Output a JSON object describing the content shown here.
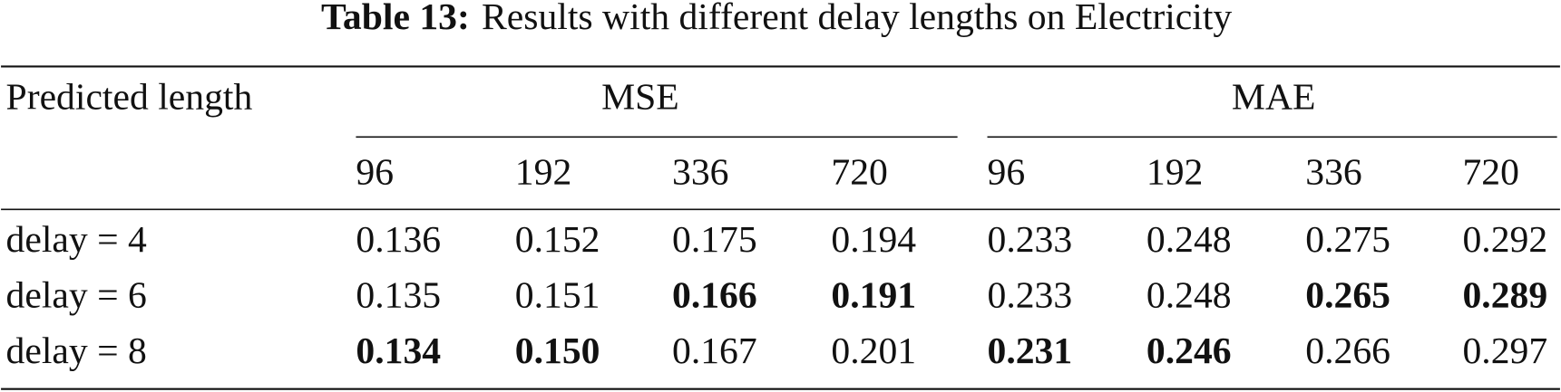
{
  "caption": {
    "label": "Table 13:",
    "text": "Results with different delay lengths on Electricity"
  },
  "table": {
    "header": "Predicted length",
    "groups": [
      "MSE",
      "MAE"
    ],
    "subheaders": [
      "96",
      "192",
      "336",
      "720",
      "96",
      "192",
      "336",
      "720"
    ],
    "rows": [
      {
        "label": "delay = 4",
        "cells": [
          {
            "text": "0.136",
            "bold": false
          },
          {
            "text": "0.152",
            "bold": false
          },
          {
            "text": "0.175",
            "bold": false
          },
          {
            "text": "0.194",
            "bold": false
          },
          {
            "text": "0.233",
            "bold": false
          },
          {
            "text": "0.248",
            "bold": false
          },
          {
            "text": "0.275",
            "bold": false
          },
          {
            "text": "0.292",
            "bold": false
          }
        ]
      },
      {
        "label": "delay = 6",
        "cells": [
          {
            "text": "0.135",
            "bold": false
          },
          {
            "text": "0.151",
            "bold": false
          },
          {
            "text": "0.166",
            "bold": true
          },
          {
            "text": "0.191",
            "bold": true
          },
          {
            "text": "0.233",
            "bold": false
          },
          {
            "text": "0.248",
            "bold": false
          },
          {
            "text": "0.265",
            "bold": true
          },
          {
            "text": "0.289",
            "bold": true
          }
        ]
      },
      {
        "label": "delay = 8",
        "cells": [
          {
            "text": "0.134",
            "bold": true
          },
          {
            "text": "0.150",
            "bold": true
          },
          {
            "text": "0.167",
            "bold": false
          },
          {
            "text": "0.201",
            "bold": false
          },
          {
            "text": "0.231",
            "bold": true
          },
          {
            "text": "0.246",
            "bold": true
          },
          {
            "text": "0.266",
            "bold": false
          },
          {
            "text": "0.297",
            "bold": false
          }
        ]
      }
    ]
  }
}
